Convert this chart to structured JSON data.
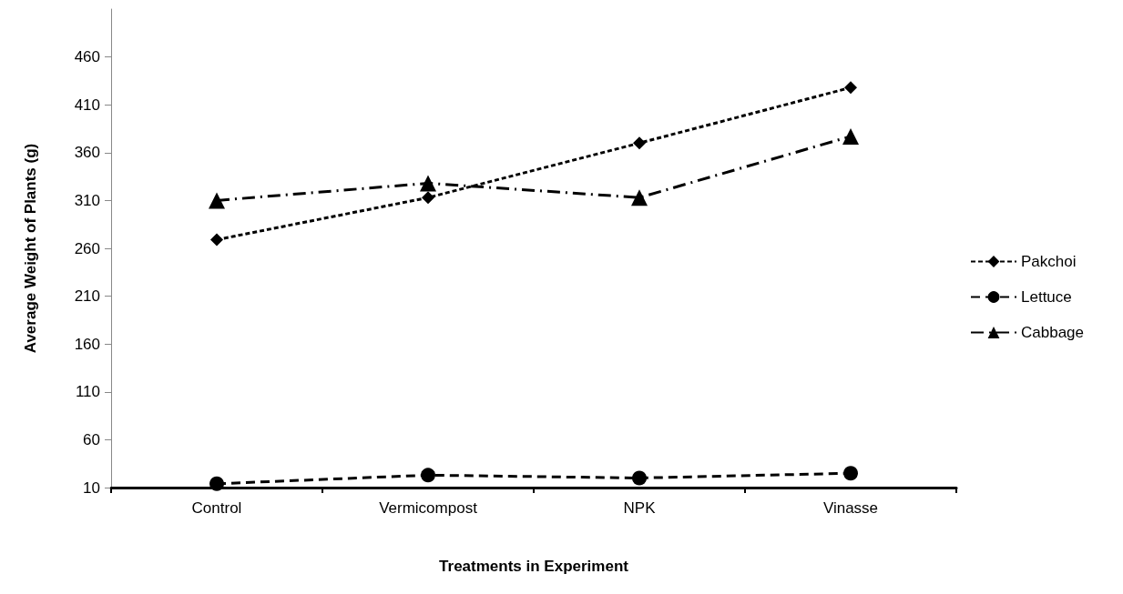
{
  "chart_data": {
    "type": "line",
    "xlabel": "Treatments in Experiment",
    "ylabel": "Average Weight of Plants (g)",
    "categories": [
      "Control",
      "Vermicompost",
      "NPK",
      "Vinasse"
    ],
    "series": [
      {
        "name": "Pakchoi",
        "color": "#000000",
        "marker": "diamond",
        "line_style": "dotted",
        "values": [
          269,
          313,
          370,
          428
        ]
      },
      {
        "name": "Lettuce",
        "color": "#000000",
        "marker": "circle",
        "line_style": "dashed",
        "values": [
          14,
          23,
          20,
          25
        ]
      },
      {
        "name": "Cabbage",
        "color": "#000000",
        "marker": "triangle",
        "line_style": "dashdot",
        "values": [
          310,
          328,
          313,
          377
        ]
      }
    ],
    "ylim": [
      10,
      510
    ],
    "yticks": [
      10,
      60,
      110,
      160,
      210,
      260,
      310,
      360,
      410,
      460
    ],
    "grid": false,
    "legend": "right"
  }
}
